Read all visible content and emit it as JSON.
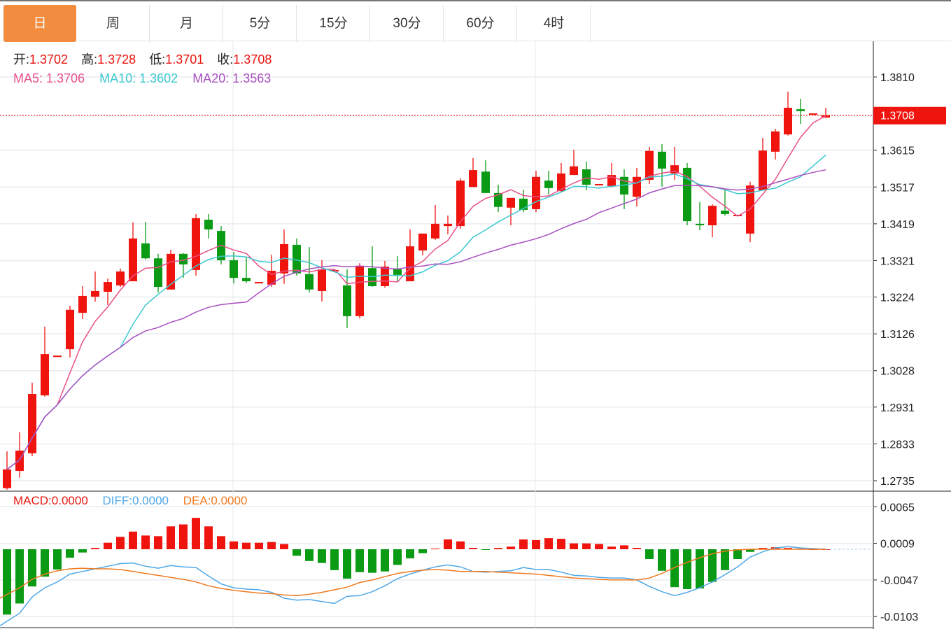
{
  "tabs": [
    {
      "label": "日",
      "active": true
    },
    {
      "label": "周"
    },
    {
      "label": "月"
    },
    {
      "label": "5分"
    },
    {
      "label": "15分"
    },
    {
      "label": "30分"
    },
    {
      "label": "60分"
    },
    {
      "label": "4时"
    }
  ],
  "ohlc_info": {
    "open_label": "开:",
    "open": "1.3702",
    "high_label": "高:",
    "high": "1.3728",
    "low_label": "低:",
    "low": "1.3701",
    "close_label": "收:",
    "close": "1.3708"
  },
  "ma_info": {
    "ma5": "MA5: 1.3706",
    "ma10": "MA10: 1.3602",
    "ma20": "MA20: 1.3563"
  },
  "macd_info": {
    "macd": "MACD:0.0000",
    "diff": "DIFF:0.0000",
    "dea": "DEA:0.0000"
  },
  "colors": {
    "up": "#F0140E",
    "down": "#0A9A14",
    "accent_tab": "#F28C3F",
    "ma5": "#E8508A",
    "ma10": "#3CC8D0",
    "ma20": "#A950C0",
    "diff": "#4FA8E8",
    "dea": "#F07A20"
  },
  "chart_data": [
    {
      "type": "candlestick",
      "title": "",
      "yaxis_position": "right",
      "ylim": [
        1.2715,
        1.387
      ],
      "yticks": [
        "1.3810",
        "1.3615",
        "1.3517",
        "1.3419",
        "1.3321",
        "1.3224",
        "1.3126",
        "1.3028",
        "1.2931",
        "1.2833",
        "1.2735"
      ],
      "last_price_label": "1.3708",
      "last_price": 1.3708,
      "grid": true,
      "candles": [
        [
          1.2715,
          1.2813,
          1.2711,
          1.2765
        ],
        [
          1.2761,
          1.2864,
          1.2743,
          1.2815
        ],
        [
          1.2808,
          1.2996,
          1.28,
          1.2966
        ],
        [
          1.2962,
          1.3145,
          1.2959,
          1.3072
        ],
        [
          1.3068,
          1.3068,
          1.3068,
          1.3068
        ],
        [
          1.3085,
          1.3201,
          1.3063,
          1.319
        ],
        [
          1.3182,
          1.3253,
          1.3165,
          1.3227
        ],
        [
          1.3225,
          1.3292,
          1.3212,
          1.324
        ],
        [
          1.3238,
          1.3273,
          1.3203,
          1.3264
        ],
        [
          1.3255,
          1.33,
          1.3251,
          1.3292
        ],
        [
          1.3266,
          1.3423,
          1.3266,
          1.338
        ],
        [
          1.3367,
          1.3424,
          1.3324,
          1.3327
        ],
        [
          1.3327,
          1.3339,
          1.3236,
          1.3251
        ],
        [
          1.3244,
          1.335,
          1.3244,
          1.3339
        ],
        [
          1.3339,
          1.3341,
          1.3275,
          1.3311
        ],
        [
          1.3296,
          1.3445,
          1.3281,
          1.3434
        ],
        [
          1.343,
          1.3445,
          1.338,
          1.3404
        ],
        [
          1.34,
          1.3413,
          1.3311,
          1.3322
        ],
        [
          1.3322,
          1.3344,
          1.326,
          1.3275
        ],
        [
          1.3275,
          1.3329,
          1.3262,
          1.3266
        ],
        [
          1.3264,
          1.3264,
          1.3264,
          1.3264
        ],
        [
          1.3257,
          1.3337,
          1.3251,
          1.3294
        ],
        [
          1.3287,
          1.3404,
          1.3259,
          1.3365
        ],
        [
          1.3363,
          1.338,
          1.3281,
          1.3287
        ],
        [
          1.3285,
          1.3357,
          1.3236,
          1.3244
        ],
        [
          1.324,
          1.3322,
          1.3212,
          1.3298
        ],
        [
          1.3296,
          1.3296,
          1.3296,
          1.3296
        ],
        [
          1.3255,
          1.3298,
          1.3141,
          1.3173
        ],
        [
          1.3173,
          1.3314,
          1.3167,
          1.3307
        ],
        [
          1.3301,
          1.3359,
          1.3251,
          1.3253
        ],
        [
          1.3253,
          1.332,
          1.3249,
          1.3305
        ],
        [
          1.3298,
          1.3333,
          1.3266,
          1.3283
        ],
        [
          1.3266,
          1.3404,
          1.3266,
          1.3359
        ],
        [
          1.3348,
          1.3393,
          1.3335,
          1.3393
        ],
        [
          1.338,
          1.3469,
          1.3376,
          1.3419
        ],
        [
          1.3413,
          1.3441,
          1.3391,
          1.3419
        ],
        [
          1.3413,
          1.354,
          1.3406,
          1.3534
        ],
        [
          1.3517,
          1.3594,
          1.3517,
          1.3562
        ],
        [
          1.3558,
          1.3588,
          1.3501,
          1.3501
        ],
        [
          1.3501,
          1.3523,
          1.345,
          1.3464
        ],
        [
          1.3462,
          1.3488,
          1.3415,
          1.3488
        ],
        [
          1.3486,
          1.351,
          1.345,
          1.3456
        ],
        [
          1.3458,
          1.356,
          1.345,
          1.3544
        ],
        [
          1.3534,
          1.356,
          1.3497,
          1.3514
        ],
        [
          1.3506,
          1.3581,
          1.3503,
          1.3553
        ],
        [
          1.3549,
          1.3616,
          1.3549,
          1.3572
        ],
        [
          1.3564,
          1.3585,
          1.3508,
          1.3523
        ],
        [
          1.3525,
          1.3525,
          1.3525,
          1.3525
        ],
        [
          1.3519,
          1.3581,
          1.3516,
          1.3549
        ],
        [
          1.3544,
          1.3564,
          1.3458,
          1.3497
        ],
        [
          1.3491,
          1.3568,
          1.3465,
          1.3544
        ],
        [
          1.3536,
          1.3624,
          1.3525,
          1.3613
        ],
        [
          1.3611,
          1.3631,
          1.3518,
          1.3566
        ],
        [
          1.3553,
          1.3624,
          1.3536,
          1.3575
        ],
        [
          1.3568,
          1.3581,
          1.3415,
          1.3426
        ],
        [
          1.3419,
          1.3477,
          1.3402,
          1.3415
        ],
        [
          1.3415,
          1.3471,
          1.3383,
          1.3467
        ],
        [
          1.3454,
          1.3508,
          1.3441,
          1.3445
        ],
        [
          1.3443,
          1.3443,
          1.3443,
          1.3443
        ],
        [
          1.3393,
          1.3531,
          1.337,
          1.3521
        ],
        [
          1.3508,
          1.3648,
          1.3508,
          1.3614
        ],
        [
          1.3611,
          1.3672,
          1.359,
          1.3665
        ],
        [
          1.3657,
          1.3771,
          1.3654,
          1.3728
        ],
        [
          1.3724,
          1.3752,
          1.3685,
          1.3719
        ],
        [
          1.3713,
          1.3713,
          1.3713,
          1.3713
        ],
        [
          1.3702,
          1.3728,
          1.3701,
          1.3708
        ]
      ],
      "candle_format": [
        "open",
        "high",
        "low",
        "close"
      ],
      "moving_averages": [
        5,
        10,
        20
      ]
    },
    {
      "type": "macd",
      "yaxis_position": "right",
      "ylim": [
        -0.0113,
        0.0085
      ],
      "yticks": [
        "0.0065",
        "0.0009",
        "-0.0047",
        "-0.0103"
      ],
      "macd": [
        -0.01,
        -0.0083,
        -0.0057,
        -0.0042,
        -0.0031,
        -0.0013,
        -0.0005,
        0.0002,
        0.001,
        0.0019,
        0.0027,
        0.0021,
        0.002,
        0.0035,
        0.0038,
        0.0048,
        0.0035,
        0.002,
        0.0012,
        0.001,
        0.001,
        0.0011,
        0.0008,
        -0.001,
        -0.0018,
        -0.0021,
        -0.0032,
        -0.0045,
        -0.0035,
        -0.0036,
        -0.0034,
        -0.0024,
        -0.0014,
        -0.0006,
        0.0001,
        0.0015,
        0.0012,
        0.0002,
        -0.0001,
        0.0002,
        0.0004,
        0.0015,
        0.0014,
        0.0017,
        0.0016,
        0.0009,
        0.0009,
        0.0008,
        0.0004,
        0.0006,
        0.0002,
        -0.0015,
        -0.0033,
        -0.0058,
        -0.0061,
        -0.006,
        -0.005,
        -0.0032,
        -0.0015,
        -0.0004,
        0.0002,
        0.0003,
        0.0002,
        0.0001,
        0.0,
        0.0
      ],
      "diff": [
        -0.0117,
        -0.0098,
        -0.0073,
        -0.0059,
        -0.005,
        -0.0038,
        -0.0034,
        -0.003,
        -0.0026,
        -0.0022,
        -0.0021,
        -0.0026,
        -0.0029,
        -0.0025,
        -0.0027,
        -0.0028,
        -0.0041,
        -0.0053,
        -0.0059,
        -0.0061,
        -0.0062,
        -0.0066,
        -0.0075,
        -0.0078,
        -0.0077,
        -0.008,
        -0.0083,
        -0.0072,
        -0.0071,
        -0.0065,
        -0.0056,
        -0.0045,
        -0.0038,
        -0.0032,
        -0.0027,
        -0.0024,
        -0.0027,
        -0.0034,
        -0.0035,
        -0.0034,
        -0.0033,
        -0.0028,
        -0.0031,
        -0.0031,
        -0.0035,
        -0.004,
        -0.0041,
        -0.0043,
        -0.0044,
        -0.0044,
        -0.0047,
        -0.0057,
        -0.0065,
        -0.0071,
        -0.0066,
        -0.0059,
        -0.005,
        -0.0039,
        -0.0027,
        -0.0012,
        -0.0004,
        0.0002,
        0.0004,
        0.0002,
        0.0001,
        0.0
      ],
      "dea": [
        -0.0075,
        -0.0059,
        -0.0046,
        -0.0038,
        -0.0033,
        -0.003,
        -0.0029,
        -0.003,
        -0.003,
        -0.0031,
        -0.0034,
        -0.0037,
        -0.004,
        -0.0043,
        -0.0046,
        -0.005,
        -0.0056,
        -0.006,
        -0.0063,
        -0.0065,
        -0.0067,
        -0.0068,
        -0.007,
        -0.0071,
        -0.0069,
        -0.0066,
        -0.0062,
        -0.0058,
        -0.0051,
        -0.0047,
        -0.0042,
        -0.0037,
        -0.0034,
        -0.0032,
        -0.0031,
        -0.0032,
        -0.0034,
        -0.0034,
        -0.0034,
        -0.0035,
        -0.0036,
        -0.0037,
        -0.0038,
        -0.004,
        -0.0042,
        -0.0044,
        -0.0045,
        -0.0046,
        -0.0047,
        -0.0047,
        -0.0047,
        -0.0044,
        -0.0037,
        -0.0028,
        -0.002,
        -0.0013,
        -0.0007,
        -0.0003,
        -0.0001,
        0.0,
        0.0,
        0.0,
        0.0,
        0.0,
        0.0,
        0.0
      ]
    }
  ]
}
